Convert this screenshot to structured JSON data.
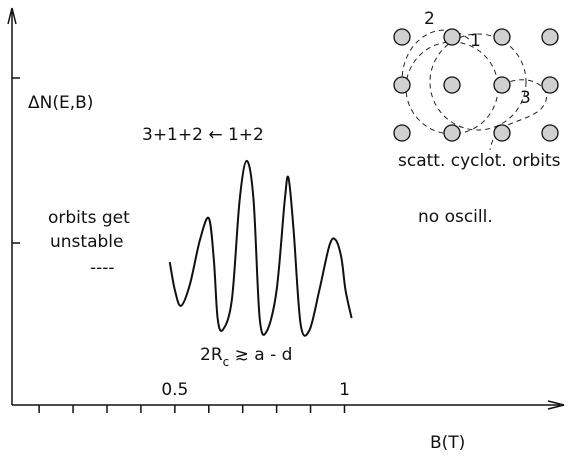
{
  "chart_data": {
    "type": "line",
    "ylabel": "ΔN(E,B)",
    "xlabel": "B(T)",
    "xlim": [
      0.02,
      1.65
    ],
    "ylim": [
      0,
      1
    ],
    "xticks": [
      0.5,
      1
    ],
    "xminorticks": [
      0.1,
      0.2,
      0.3,
      0.4,
      0.6,
      0.7,
      0.8,
      0.9
    ],
    "color": "#111111",
    "x": [
      0.485,
      0.5,
      0.518,
      0.544,
      0.574,
      0.6,
      0.615,
      0.626,
      0.641,
      0.668,
      0.691,
      0.712,
      0.732,
      0.75,
      0.771,
      0.8,
      0.824,
      0.835,
      0.85,
      0.871,
      0.897,
      0.926,
      0.956,
      0.974,
      0.991,
      1.003,
      1.021
    ],
    "values": [
      0.362,
      0.291,
      0.251,
      0.304,
      0.418,
      0.473,
      0.367,
      0.22,
      0.19,
      0.266,
      0.519,
      0.618,
      0.519,
      0.22,
      0.187,
      0.291,
      0.519,
      0.575,
      0.443,
      0.203,
      0.19,
      0.291,
      0.405,
      0.418,
      0.372,
      0.291,
      0.22
    ],
    "annotations": {
      "transition": "3+1+2 ← 1+2",
      "unstable_1": "orbits get",
      "unstable_2": "unstable",
      "dashes": "----",
      "no_osc": "no oscill.",
      "condition": {
        "main": "2R",
        "sub": "c",
        "rest": " ≳ a - d"
      },
      "inset_caption": "scatt. cyclot. orbits",
      "orbit_1": "1",
      "orbit_2": "2",
      "orbit_3": "3"
    }
  }
}
